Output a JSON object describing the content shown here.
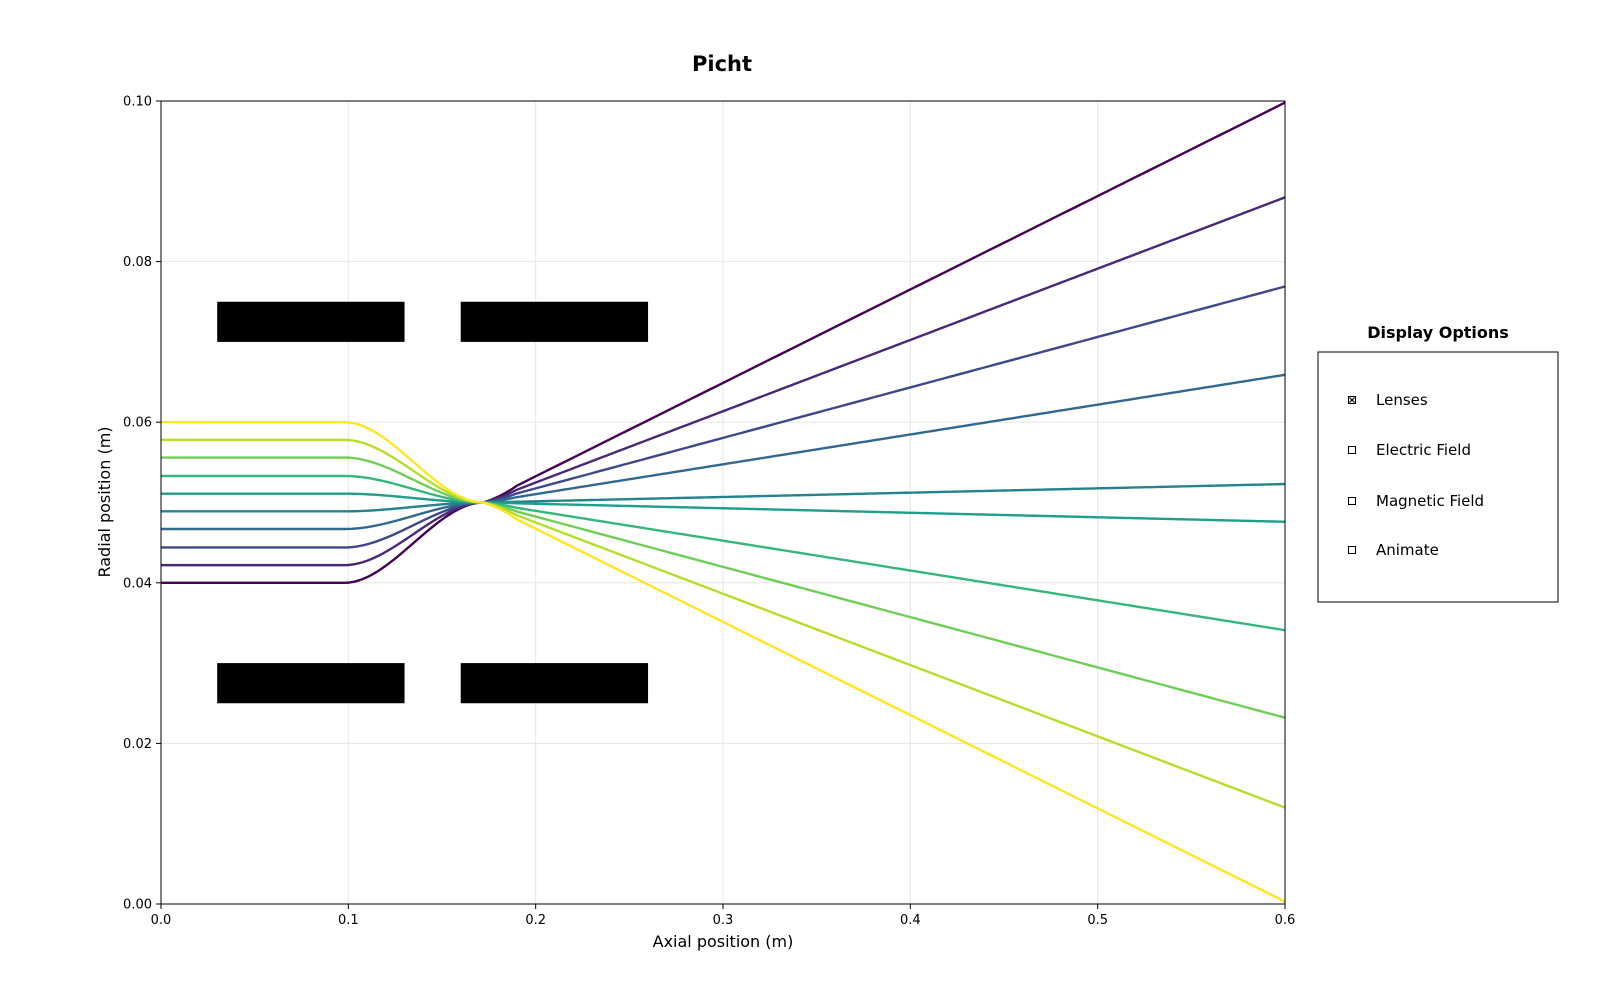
{
  "chart_data": {
    "type": "line",
    "title": "Picht",
    "xlabel": "Axial position (m)",
    "ylabel": "Radial position (m)",
    "xlim": [
      0,
      0.6
    ],
    "ylim": [
      0,
      0.1
    ],
    "xticks": [
      "0.0",
      "0.1",
      "0.2",
      "0.3",
      "0.4",
      "0.5",
      "0.6"
    ],
    "yticks": [
      "0.00",
      "0.02",
      "0.04",
      "0.06",
      "0.08",
      "0.10"
    ],
    "grid": true,
    "colormap": "viridis",
    "focus_point": [
      0.172,
      0.05
    ],
    "series": [
      {
        "initial_radius": 0.04,
        "final_radius": 0.0998,
        "color": "#440154"
      },
      {
        "initial_radius": 0.0422,
        "final_radius": 0.088,
        "color": "#482878"
      },
      {
        "initial_radius": 0.0444,
        "final_radius": 0.0769,
        "color": "#3e4989"
      },
      {
        "initial_radius": 0.0467,
        "final_radius": 0.0659,
        "color": "#31688e"
      },
      {
        "initial_radius": 0.0489,
        "final_radius": 0.0523,
        "color": "#26828e"
      },
      {
        "initial_radius": 0.0511,
        "final_radius": 0.0476,
        "color": "#1f9e89"
      },
      {
        "initial_radius": 0.0533,
        "final_radius": 0.0341,
        "color": "#35b779"
      },
      {
        "initial_radius": 0.0556,
        "final_radius": 0.0232,
        "color": "#6ece58"
      },
      {
        "initial_radius": 0.0578,
        "final_radius": 0.012,
        "color": "#b5de2b"
      },
      {
        "initial_radius": 0.06,
        "final_radius": 0.0003,
        "color": "#fde725"
      }
    ],
    "lens_electrodes": [
      {
        "x": [
          0.03,
          0.13
        ],
        "y": [
          0.07,
          0.075
        ]
      },
      {
        "x": [
          0.16,
          0.26
        ],
        "y": [
          0.07,
          0.075
        ]
      },
      {
        "x": [
          0.03,
          0.13
        ],
        "y": [
          0.025,
          0.03
        ]
      },
      {
        "x": [
          0.16,
          0.26
        ],
        "y": [
          0.025,
          0.03
        ]
      }
    ]
  },
  "display_options": {
    "title": "Display Options",
    "items": [
      {
        "label": "Lenses",
        "checked": true
      },
      {
        "label": "Electric Field",
        "checked": false
      },
      {
        "label": "Magnetic Field",
        "checked": false
      },
      {
        "label": "Animate",
        "checked": false
      }
    ]
  }
}
